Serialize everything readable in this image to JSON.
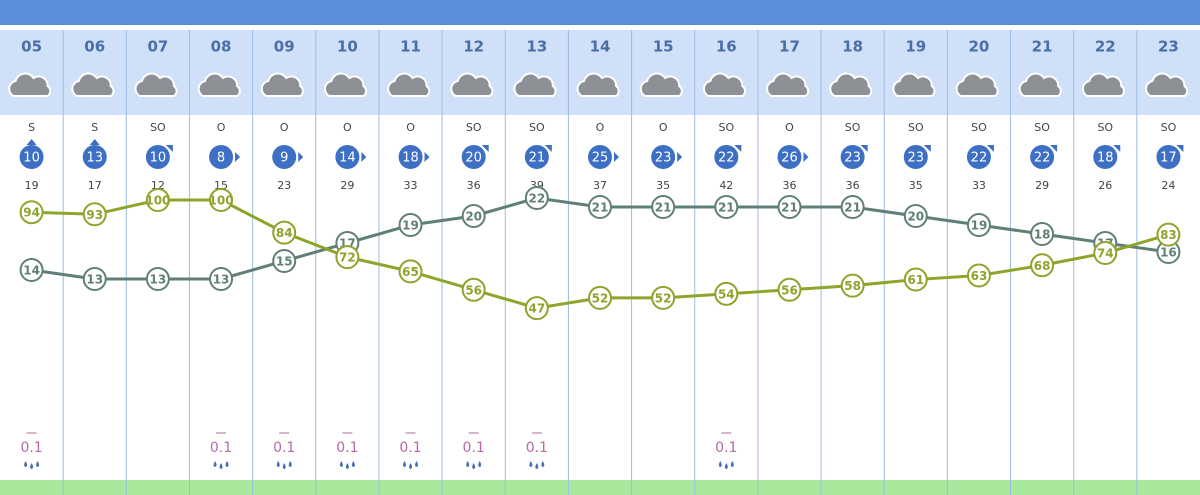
{
  "chart_data": {
    "type": "line",
    "categories": [
      "05",
      "06",
      "07",
      "08",
      "09",
      "10",
      "11",
      "12",
      "13",
      "14",
      "15",
      "16",
      "17",
      "18",
      "19",
      "20",
      "21",
      "22",
      "23"
    ],
    "wind_direction": [
      "S",
      "S",
      "SO",
      "O",
      "O",
      "O",
      "O",
      "SO",
      "SO",
      "O",
      "O",
      "SO",
      "O",
      "SO",
      "SO",
      "SO",
      "SO",
      "SO",
      "SO"
    ],
    "wind_speed": [
      10,
      13,
      10,
      8,
      9,
      14,
      18,
      20,
      21,
      25,
      23,
      22,
      26,
      23,
      23,
      22,
      22,
      18,
      17
    ],
    "wind_gust": [
      19,
      17,
      12,
      15,
      23,
      29,
      33,
      36,
      39,
      37,
      35,
      42,
      36,
      36,
      35,
      33,
      29,
      26,
      24
    ],
    "precipitation": [
      0.1,
      null,
      null,
      0.1,
      0.1,
      0.1,
      0.1,
      0.1,
      0.1,
      null,
      null,
      0.1,
      null,
      null,
      null,
      null,
      null,
      null,
      null
    ],
    "series": [
      {
        "color": "#5f7f78",
        "values": [
          14,
          13,
          13,
          13,
          15,
          17,
          19,
          20,
          22,
          21,
          21,
          21,
          21,
          21,
          20,
          19,
          18,
          17,
          16
        ]
      },
      {
        "color": "#8ca52a",
        "axis": "y2",
        "values": [
          94,
          93,
          100,
          100,
          84,
          72,
          65,
          56,
          47,
          52,
          52,
          54,
          56,
          58,
          61,
          63,
          68,
          74,
          83
        ]
      }
    ],
    "ylim": [
      0,
      40
    ],
    "y2lim": [
      0,
      100
    ]
  }
}
